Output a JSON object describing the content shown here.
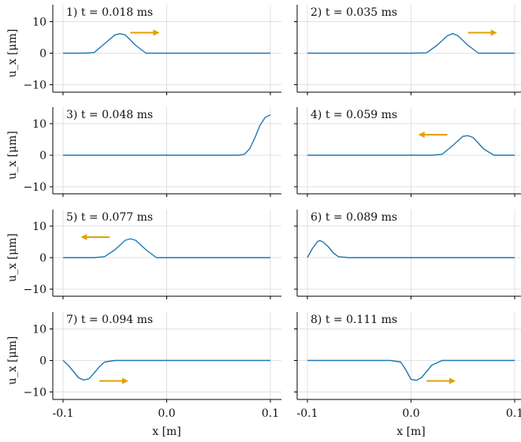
{
  "chart_data": {
    "type": "line",
    "layout": "4 rows x 2 columns of small multiples, shared axes",
    "xlabel": "x [m]",
    "ylabel": "u_x [μm]",
    "xlim": [
      -0.105,
      0.105
    ],
    "ylim": [
      -14,
      14
    ],
    "xticks": [
      -0.1,
      0.0,
      0.1
    ],
    "xtick_labels": [
      "-0.1",
      "0.0",
      "0.1"
    ],
    "yticks": [
      -10,
      0,
      10
    ],
    "ytick_labels": [
      "−10",
      "0",
      "10"
    ],
    "grid": true,
    "line_color": "#1f77b4",
    "arrow_color": "#e69f00",
    "panels": [
      {
        "label": "1)",
        "time": "t = 0.018 ms",
        "arrow": "right",
        "series": {
          "name": "",
          "x": [
            -0.1,
            -0.08,
            -0.07,
            -0.06,
            -0.05,
            -0.045,
            -0.04,
            -0.03,
            -0.02,
            0.0,
            0.05,
            0.1
          ],
          "y": [
            0,
            0,
            0.2,
            3.0,
            5.8,
            6.2,
            5.8,
            2.5,
            0,
            0,
            0,
            0
          ]
        }
      },
      {
        "label": "2)",
        "time": "t = 0.035 ms",
        "arrow": "right",
        "series": {
          "name": "",
          "x": [
            -0.1,
            -0.05,
            0.0,
            0.015,
            0.025,
            0.035,
            0.04,
            0.045,
            0.055,
            0.065,
            0.08,
            0.1
          ],
          "y": [
            0,
            0,
            0,
            0.1,
            2.5,
            5.5,
            6.2,
            5.6,
            2.5,
            0,
            0,
            0
          ]
        }
      },
      {
        "label": "3)",
        "time": "t = 0.048 ms",
        "arrow": "none",
        "series": {
          "name": "",
          "x": [
            -0.1,
            -0.05,
            0.0,
            0.05,
            0.07,
            0.075,
            0.08,
            0.085,
            0.09,
            0.095,
            0.1
          ],
          "y": [
            0,
            0,
            0,
            0,
            0,
            0.3,
            2.0,
            5.5,
            9.5,
            12.0,
            12.8
          ]
        }
      },
      {
        "label": "4)",
        "time": "t = 0.059 ms",
        "arrow": "left",
        "series": {
          "name": "",
          "x": [
            -0.1,
            -0.05,
            0.0,
            0.02,
            0.03,
            0.04,
            0.05,
            0.055,
            0.06,
            0.07,
            0.08,
            0.1
          ],
          "y": [
            0,
            0,
            0,
            0,
            0.3,
            3.0,
            6.0,
            6.2,
            5.6,
            2.0,
            0,
            0
          ]
        }
      },
      {
        "label": "5)",
        "time": "t = 0.077 ms",
        "arrow": "left",
        "series": {
          "name": "",
          "x": [
            -0.1,
            -0.07,
            -0.06,
            -0.05,
            -0.04,
            -0.035,
            -0.03,
            -0.02,
            -0.01,
            0.0,
            0.05,
            0.1
          ],
          "y": [
            0,
            0,
            0.3,
            2.5,
            5.5,
            6.0,
            5.5,
            2.5,
            0,
            0,
            0,
            0
          ]
        }
      },
      {
        "label": "6)",
        "time": "t = 0.089 ms",
        "arrow": "none",
        "series": {
          "name": "",
          "x": [
            -0.1,
            -0.095,
            -0.09,
            -0.088,
            -0.085,
            -0.08,
            -0.075,
            -0.07,
            -0.06,
            0.0,
            0.05,
            0.1
          ],
          "y": [
            0,
            3.0,
            5.2,
            5.4,
            5.0,
            3.5,
            1.5,
            0.3,
            0,
            0,
            0,
            0
          ]
        }
      },
      {
        "label": "7)",
        "time": "t = 0.094 ms",
        "arrow": "right",
        "series": {
          "name": "",
          "x": [
            -0.1,
            -0.095,
            -0.09,
            -0.085,
            -0.08,
            -0.075,
            -0.07,
            -0.065,
            -0.06,
            -0.05,
            0.0,
            0.1
          ],
          "y": [
            0,
            -1.5,
            -3.5,
            -5.5,
            -6.2,
            -5.8,
            -4.0,
            -2.0,
            -0.5,
            0,
            0,
            0
          ]
        }
      },
      {
        "label": "8)",
        "time": "t = 0.111 ms",
        "arrow": "right",
        "series": {
          "name": "",
          "x": [
            -0.1,
            -0.05,
            -0.02,
            -0.01,
            -0.005,
            0.0,
            0.005,
            0.01,
            0.015,
            0.02,
            0.03,
            0.1
          ],
          "y": [
            0,
            0,
            0,
            -0.5,
            -3.0,
            -6.0,
            -6.3,
            -5.5,
            -3.5,
            -1.5,
            0,
            0
          ]
        }
      }
    ]
  }
}
